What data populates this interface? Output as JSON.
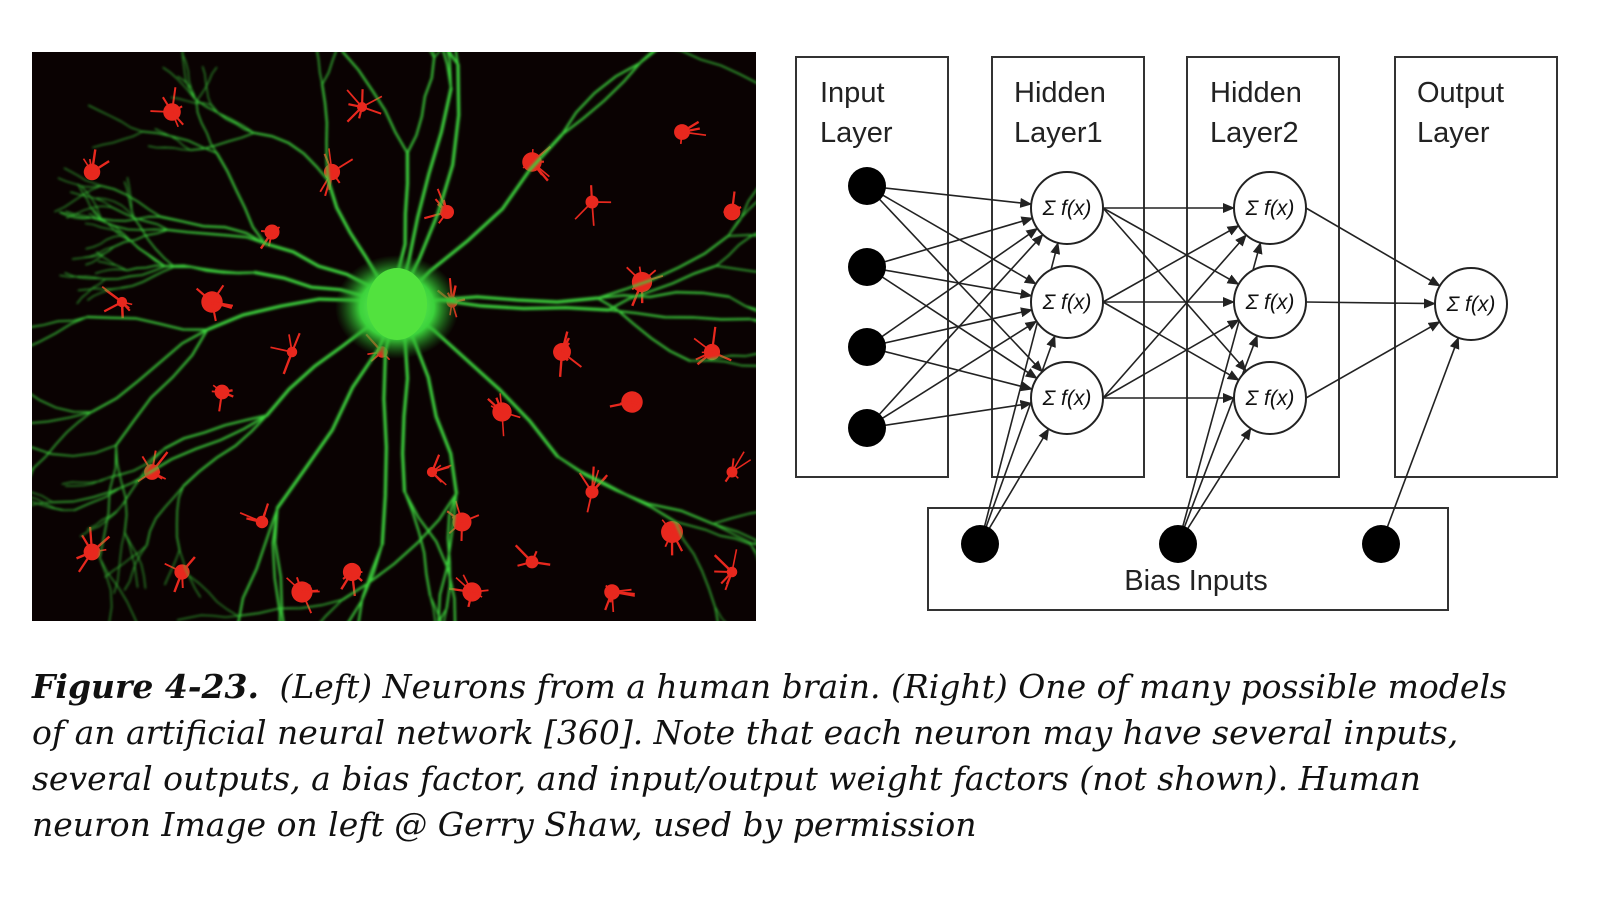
{
  "colors": {
    "photo_background": "#0a0202",
    "neuron": "#3cd23c",
    "glia": "#e8281e",
    "diagram_line": "#222222"
  },
  "diagram": {
    "layers": [
      {
        "label_line1": "Input",
        "label_line2": "Layer"
      },
      {
        "label_line1": "Hidden",
        "label_line2": "Layer1"
      },
      {
        "label_line1": "Hidden",
        "label_line2": "Layer2"
      },
      {
        "label_line1": "Output",
        "label_line2": "Layer"
      }
    ],
    "node_label": "Σ f(x)",
    "bias_label": "Bias Inputs"
  },
  "caption": {
    "figure_label": "Figure 4-23.",
    "line1": "(Left) Neurons from a human brain. (Right) One of many possible models",
    "line2": "of an artificial neural network [360]. Note that each neuron may have several inputs,",
    "line3": "several outputs, a bias factor, and input/output weight factors (not shown). Human",
    "line4": "neuron Image on left @ Gerry Shaw, used by permission"
  }
}
